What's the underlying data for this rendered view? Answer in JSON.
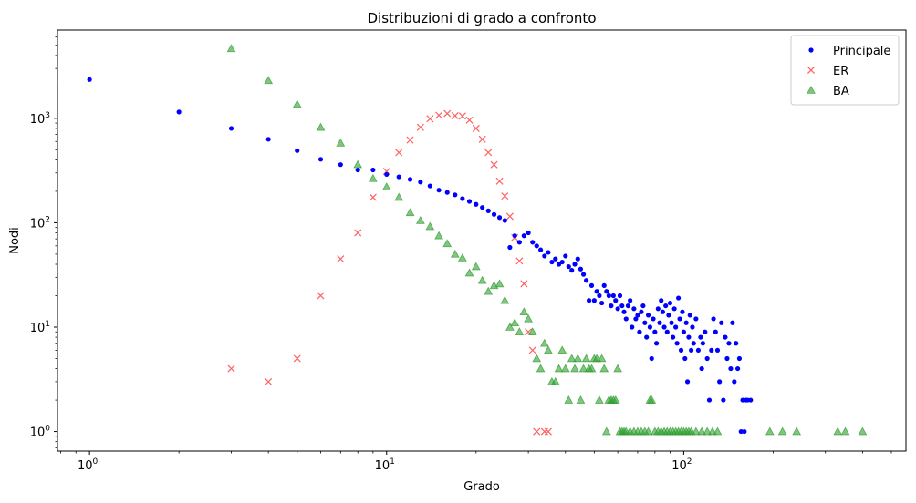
{
  "chart_data": {
    "type": "scatter",
    "title": "Distribuzioni di grado a confronto",
    "xlabel": "Grado",
    "ylabel": "Nodi",
    "xscale": "log",
    "yscale": "log",
    "xlim": [
      0.78,
      560
    ],
    "ylim": [
      0.65,
      7000
    ],
    "x_ticks": [
      {
        "base": "10",
        "exp": "0",
        "value": 1
      },
      {
        "base": "10",
        "exp": "1",
        "value": 10
      },
      {
        "base": "10",
        "exp": "2",
        "value": 100
      }
    ],
    "y_ticks": [
      {
        "base": "10",
        "exp": "0",
        "value": 1
      },
      {
        "base": "10",
        "exp": "1",
        "value": 10
      },
      {
        "base": "10",
        "exp": "2",
        "value": 100
      },
      {
        "base": "10",
        "exp": "3",
        "value": 1000
      }
    ],
    "legend_position": "top-right",
    "grid": false,
    "series": [
      {
        "name": "Principale",
        "marker": "dot",
        "color": "#0000ff",
        "points": [
          [
            1,
            2350
          ],
          [
            2,
            1150
          ],
          [
            3,
            800
          ],
          [
            4,
            630
          ],
          [
            5,
            490
          ],
          [
            6,
            405
          ],
          [
            7,
            360
          ],
          [
            8,
            320
          ],
          [
            9,
            320
          ],
          [
            10,
            290
          ],
          [
            11,
            275
          ],
          [
            12,
            260
          ],
          [
            13,
            245
          ],
          [
            14,
            225
          ],
          [
            15,
            205
          ],
          [
            16,
            195
          ],
          [
            17,
            185
          ],
          [
            18,
            170
          ],
          [
            19,
            160
          ],
          [
            20,
            150
          ],
          [
            21,
            140
          ],
          [
            22,
            130
          ],
          [
            23,
            120
          ],
          [
            24,
            112
          ],
          [
            25,
            105
          ],
          [
            26,
            58
          ],
          [
            27,
            75
          ],
          [
            28,
            65
          ],
          [
            29,
            75
          ],
          [
            30,
            80
          ],
          [
            31,
            65
          ],
          [
            32,
            60
          ],
          [
            33,
            55
          ],
          [
            34,
            48
          ],
          [
            35,
            52
          ],
          [
            36,
            42
          ],
          [
            37,
            45
          ],
          [
            38,
            40
          ],
          [
            39,
            42
          ],
          [
            40,
            48
          ],
          [
            41,
            38
          ],
          [
            42,
            35
          ],
          [
            43,
            40
          ],
          [
            44,
            45
          ],
          [
            45,
            36
          ],
          [
            46,
            32
          ],
          [
            47,
            28
          ],
          [
            48,
            18
          ],
          [
            49,
            25
          ],
          [
            50,
            18
          ],
          [
            51,
            22
          ],
          [
            52,
            20
          ],
          [
            53,
            17
          ],
          [
            54,
            25
          ],
          [
            55,
            22
          ],
          [
            56,
            20
          ],
          [
            57,
            16
          ],
          [
            58,
            20
          ],
          [
            59,
            18
          ],
          [
            60,
            15
          ],
          [
            61,
            20
          ],
          [
            62,
            16
          ],
          [
            63,
            14
          ],
          [
            64,
            12
          ],
          [
            65,
            16
          ],
          [
            66,
            18
          ],
          [
            67,
            10
          ],
          [
            68,
            15
          ],
          [
            69,
            12
          ],
          [
            70,
            13
          ],
          [
            71,
            9
          ],
          [
            72,
            14
          ],
          [
            73,
            16
          ],
          [
            74,
            11
          ],
          [
            75,
            8
          ],
          [
            76,
            13
          ],
          [
            77,
            10
          ],
          [
            78,
            5
          ],
          [
            79,
            12
          ],
          [
            80,
            9
          ],
          [
            81,
            7
          ],
          [
            82,
            15
          ],
          [
            83,
            11
          ],
          [
            84,
            18
          ],
          [
            85,
            14
          ],
          [
            86,
            10
          ],
          [
            87,
            16
          ],
          [
            88,
            9
          ],
          [
            89,
            13
          ],
          [
            90,
            17
          ],
          [
            91,
            11
          ],
          [
            92,
            8
          ],
          [
            93,
            15
          ],
          [
            94,
            10
          ],
          [
            95,
            7
          ],
          [
            96,
            19
          ],
          [
            97,
            12
          ],
          [
            98,
            6
          ],
          [
            99,
            14
          ],
          [
            100,
            9
          ],
          [
            101,
            5
          ],
          [
            102,
            11
          ],
          [
            103,
            3
          ],
          [
            104,
            8
          ],
          [
            105,
            13
          ],
          [
            106,
            6
          ],
          [
            107,
            10
          ],
          [
            108,
            7
          ],
          [
            110,
            12
          ],
          [
            112,
            6
          ],
          [
            114,
            8
          ],
          [
            115,
            4
          ],
          [
            116,
            7
          ],
          [
            118,
            9
          ],
          [
            120,
            5
          ],
          [
            122,
            2
          ],
          [
            124,
            6
          ],
          [
            126,
            12
          ],
          [
            128,
            9
          ],
          [
            130,
            6
          ],
          [
            132,
            3
          ],
          [
            134,
            11
          ],
          [
            136,
            2
          ],
          [
            138,
            8
          ],
          [
            140,
            5
          ],
          [
            142,
            7
          ],
          [
            144,
            4
          ],
          [
            146,
            11
          ],
          [
            148,
            3
          ],
          [
            150,
            7
          ],
          [
            152,
            4
          ],
          [
            154,
            5
          ],
          [
            156,
            1
          ],
          [
            158,
            2
          ],
          [
            160,
            1
          ],
          [
            162,
            2
          ],
          [
            164,
            2
          ],
          [
            168,
            2
          ]
        ]
      },
      {
        "name": "ER",
        "marker": "x",
        "color": "#ff6060",
        "points": [
          [
            3,
            4
          ],
          [
            4,
            3
          ],
          [
            5,
            5
          ],
          [
            6,
            20
          ],
          [
            7,
            45
          ],
          [
            8,
            80
          ],
          [
            9,
            175
          ],
          [
            10,
            310
          ],
          [
            11,
            470
          ],
          [
            12,
            620
          ],
          [
            13,
            820
          ],
          [
            14,
            990
          ],
          [
            15,
            1070
          ],
          [
            16,
            1110
          ],
          [
            17,
            1060
          ],
          [
            18,
            1050
          ],
          [
            19,
            960
          ],
          [
            20,
            800
          ],
          [
            21,
            630
          ],
          [
            22,
            470
          ],
          [
            23,
            360
          ],
          [
            24,
            250
          ],
          [
            25,
            180
          ],
          [
            26,
            115
          ],
          [
            27,
            72
          ],
          [
            28,
            43
          ],
          [
            29,
            26
          ],
          [
            30,
            9
          ],
          [
            31,
            6
          ],
          [
            32,
            1
          ],
          [
            34,
            1
          ],
          [
            35,
            1
          ]
        ]
      },
      {
        "name": "BA",
        "marker": "triangle",
        "color": "#2e9e2e",
        "points": [
          [
            3,
            4650
          ],
          [
            4,
            2300
          ],
          [
            5,
            1360
          ],
          [
            6,
            820
          ],
          [
            7,
            580
          ],
          [
            8,
            360
          ],
          [
            9,
            265
          ],
          [
            10,
            220
          ],
          [
            11,
            175
          ],
          [
            12,
            125
          ],
          [
            13,
            105
          ],
          [
            14,
            92
          ],
          [
            15,
            75
          ],
          [
            16,
            63
          ],
          [
            17,
            50
          ],
          [
            18,
            46
          ],
          [
            19,
            33
          ],
          [
            20,
            38
          ],
          [
            21,
            28
          ],
          [
            22,
            22
          ],
          [
            23,
            25
          ],
          [
            24,
            26
          ],
          [
            25,
            18
          ],
          [
            26,
            10
          ],
          [
            27,
            11
          ],
          [
            28,
            9
          ],
          [
            29,
            14
          ],
          [
            30,
            12
          ],
          [
            31,
            9
          ],
          [
            32,
            5
          ],
          [
            33,
            4
          ],
          [
            34,
            7
          ],
          [
            35,
            6
          ],
          [
            36,
            3
          ],
          [
            37,
            3
          ],
          [
            38,
            4
          ],
          [
            39,
            6
          ],
          [
            40,
            4
          ],
          [
            41,
            2
          ],
          [
            42,
            5
          ],
          [
            43,
            4
          ],
          [
            44,
            5
          ],
          [
            45,
            2
          ],
          [
            46,
            4
          ],
          [
            47,
            5
          ],
          [
            48,
            4
          ],
          [
            49,
            4
          ],
          [
            50,
            5
          ],
          [
            51,
            5
          ],
          [
            52,
            2
          ],
          [
            53,
            5
          ],
          [
            54,
            4
          ],
          [
            55,
            1
          ],
          [
            56,
            2
          ],
          [
            57,
            2
          ],
          [
            58,
            2
          ],
          [
            59,
            2
          ],
          [
            60,
            4
          ],
          [
            61,
            1
          ],
          [
            62,
            1
          ],
          [
            63,
            1
          ],
          [
            64,
            1
          ],
          [
            66,
            1
          ],
          [
            68,
            1
          ],
          [
            70,
            1
          ],
          [
            72,
            1
          ],
          [
            74,
            1
          ],
          [
            76,
            1
          ],
          [
            77,
            2
          ],
          [
            78,
            2
          ],
          [
            80,
            1
          ],
          [
            82,
            1
          ],
          [
            84,
            1
          ],
          [
            86,
            1
          ],
          [
            88,
            1
          ],
          [
            90,
            1
          ],
          [
            92,
            1
          ],
          [
            94,
            1
          ],
          [
            96,
            1
          ],
          [
            98,
            1
          ],
          [
            100,
            1
          ],
          [
            102,
            1
          ],
          [
            104,
            1
          ],
          [
            106,
            1
          ],
          [
            110,
            1
          ],
          [
            115,
            1
          ],
          [
            120,
            1
          ],
          [
            125,
            1
          ],
          [
            130,
            1
          ],
          [
            195,
            1
          ],
          [
            215,
            1
          ],
          [
            240,
            1
          ],
          [
            330,
            1
          ],
          [
            350,
            1
          ],
          [
            400,
            1
          ]
        ]
      }
    ]
  }
}
